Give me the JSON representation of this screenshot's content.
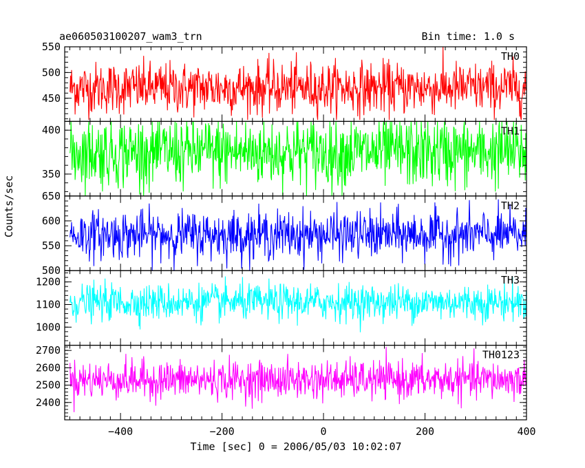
{
  "header": {
    "title_left": "ae060503100207_wam3_trn",
    "title_right": "Bin time: 1.0 s"
  },
  "axes": {
    "xlabel": "Time [sec] 0 = 2006/05/03 10:02:07",
    "ylabel": "Counts/sec"
  },
  "colors": {
    "TH0": "#ff0000",
    "TH1": "#00ff00",
    "TH2": "#0000ff",
    "TH3": "#00ffff",
    "TH0123": "#ff00ff"
  },
  "chart_data": {
    "type": "line",
    "x_range": [
      -510,
      400
    ],
    "x_ticks": [
      -400,
      -200,
      0,
      200,
      400
    ],
    "grid": false,
    "legend": "panel labels top-right",
    "series": [
      {
        "name": "TH0",
        "color": "#ff0000",
        "ylim": [
          405,
          550
        ],
        "yticks": [
          450,
          500,
          550
        ],
        "mean": 470,
        "sd": 25,
        "min": 408,
        "max": 550
      },
      {
        "name": "TH1",
        "color": "#00ff00",
        "ylim": [
          325,
          410
        ],
        "yticks": [
          350,
          400
        ],
        "mean": 375,
        "sd": 20,
        "min": 325,
        "max": 410
      },
      {
        "name": "TH2",
        "color": "#0000ff",
        "ylim": [
          500,
          650
        ],
        "yticks": [
          500,
          550,
          600,
          650
        ],
        "mean": 572,
        "sd": 24,
        "min": 500,
        "max": 650
      },
      {
        "name": "TH3",
        "color": "#00ffff",
        "ylim": [
          920,
          1250
        ],
        "yticks": [
          1000,
          1100,
          1200
        ],
        "mean": 1110,
        "sd": 40,
        "min": 960,
        "max": 1230
      },
      {
        "name": "TH0123",
        "color": "#ff00ff",
        "ylim": [
          2300,
          2730
        ],
        "yticks": [
          2400,
          2500,
          2600,
          2700
        ],
        "mean": 2530,
        "sd": 55,
        "min": 2330,
        "max": 2720
      }
    ]
  }
}
